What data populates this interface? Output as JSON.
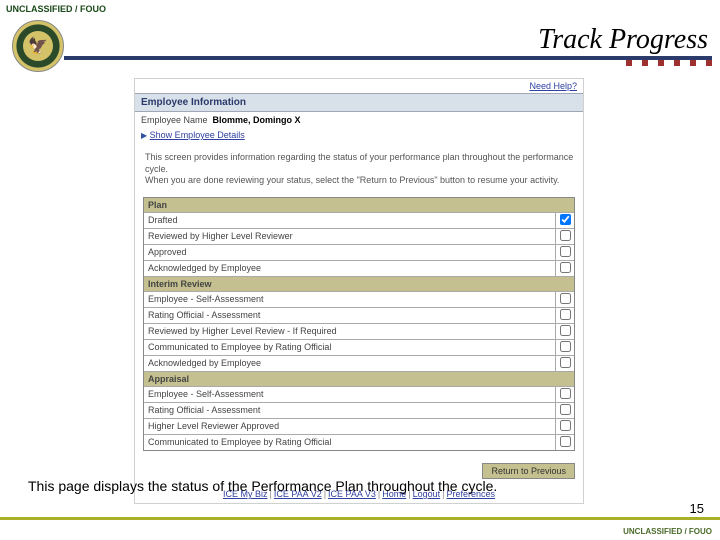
{
  "classification": "UNCLASSIFIED / FOUO",
  "title": "Track Progress",
  "seal_emoji": "🦅",
  "screenshot": {
    "need_help": "Need Help?",
    "emp_info_header": "Employee Information",
    "emp_name_label": "Employee Name",
    "emp_name_value": "Blomme, Domingo X",
    "show_details": "Show Employee Details",
    "info_para1": "This screen provides information regarding the status of your performance plan throughout the performance cycle.",
    "info_para2": "When you are done reviewing your status, select the \"Return to Previous\" button to resume your activity.",
    "groups": [
      {
        "header": "Plan",
        "rows": [
          {
            "label": "Drafted",
            "checked": true
          },
          {
            "label": "Reviewed by Higher Level Reviewer",
            "checked": false
          },
          {
            "label": "Approved",
            "checked": false
          },
          {
            "label": "Acknowledged by Employee",
            "checked": false
          }
        ]
      },
      {
        "header": "Interim Review",
        "rows": [
          {
            "label": "Employee - Self-Assessment",
            "checked": false
          },
          {
            "label": "Rating Official - Assessment",
            "checked": false
          },
          {
            "label": "Reviewed by Higher Level Review - If Required",
            "checked": false
          },
          {
            "label": "Communicated to Employee by Rating Official",
            "checked": false
          },
          {
            "label": "Acknowledged by Employee",
            "checked": false
          }
        ]
      },
      {
        "header": "Appraisal",
        "rows": [
          {
            "label": "Employee - Self-Assessment",
            "checked": false
          },
          {
            "label": "Rating Official - Assessment",
            "checked": false
          },
          {
            "label": "Higher Level Reviewer Approved",
            "checked": false
          },
          {
            "label": "Communicated to Employee by Rating Official",
            "checked": false
          }
        ]
      }
    ],
    "return_btn": "Return to Previous",
    "footer_links": [
      "ICE My Biz",
      "ICE PAA V2",
      "ICE PAA V3",
      "Home",
      "Logout",
      "Preferences"
    ]
  },
  "caption": "This page displays the status of the Performance Plan throughout the cycle.",
  "page_num": "15",
  "colors": {
    "navy": "#2a3a6a",
    "olive": "#c4c090",
    "green_bar": "#a8b028"
  }
}
